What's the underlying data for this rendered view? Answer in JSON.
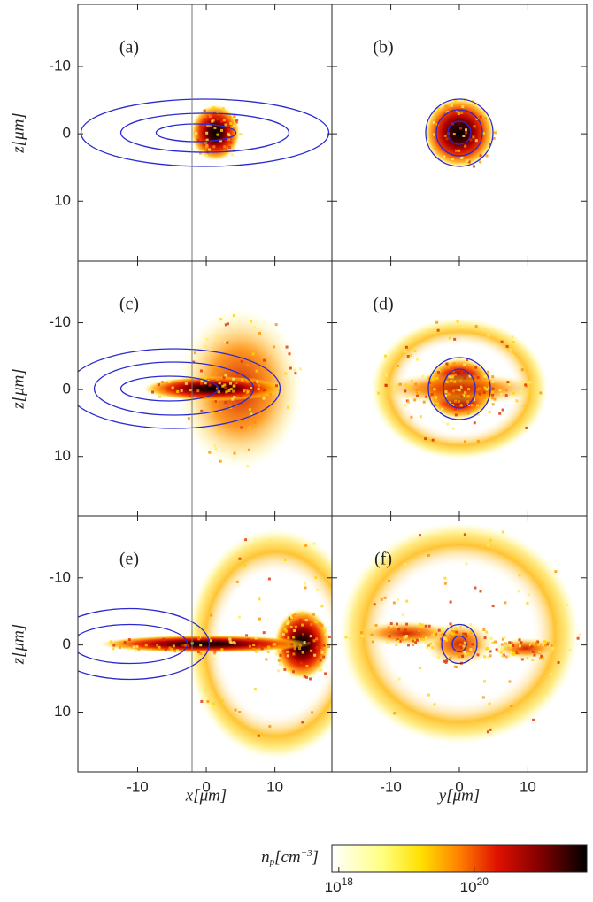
{
  "chart_data": [
    {
      "type": "heatmap",
      "panel_label": "(a)",
      "xlim": [
        -18.7,
        18.3
      ],
      "ylim": [
        18.9,
        -19.2
      ],
      "xticks": [
        -10,
        0,
        10
      ],
      "yticks": [
        -10,
        0,
        10
      ],
      "show_xticklabels": false,
      "show_yticklabels": true,
      "ylabel": "z[μm]"
    },
    {
      "type": "heatmap",
      "panel_label": "(b)",
      "xlim": [
        -18.6,
        18.6
      ],
      "ylim": [
        18.9,
        -19.2
      ],
      "xticks": [
        -10,
        0,
        10
      ],
      "yticks": [
        -10,
        0,
        10
      ],
      "show_xticklabels": false,
      "show_yticklabels": false
    },
    {
      "type": "heatmap",
      "panel_label": "(c)",
      "xlim": [
        -18.7,
        18.3
      ],
      "ylim": [
        18.9,
        -19.2
      ],
      "xticks": [
        -10,
        0,
        10
      ],
      "yticks": [
        -10,
        0,
        10
      ],
      "show_xticklabels": false,
      "show_yticklabels": true,
      "ylabel": "z[μm]"
    },
    {
      "type": "heatmap",
      "panel_label": "(d)",
      "xlim": [
        -18.6,
        18.6
      ],
      "ylim": [
        18.9,
        -19.2
      ],
      "xticks": [
        -10,
        0,
        10
      ],
      "yticks": [
        -10,
        0,
        10
      ],
      "show_xticklabels": false,
      "show_yticklabels": false
    },
    {
      "type": "heatmap",
      "panel_label": "(e)",
      "xlim": [
        -18.7,
        18.3
      ],
      "ylim": [
        18.9,
        -19.2
      ],
      "xticks": [
        -10,
        0,
        10
      ],
      "yticks": [
        -10,
        0,
        10
      ],
      "show_xticklabels": true,
      "show_yticklabels": true,
      "ylabel": "z[μm]",
      "xlabel": "x[μm]"
    },
    {
      "type": "heatmap",
      "panel_label": "(f)",
      "xlim": [
        -18.6,
        18.6
      ],
      "ylim": [
        18.9,
        -19.2
      ],
      "xticks": [
        -10,
        0,
        10
      ],
      "yticks": [
        -10,
        0,
        10
      ],
      "show_xticklabels": true,
      "show_yticklabels": false,
      "xlabel": "y[μm]"
    },
    {
      "type": "colorbar",
      "scale": "log",
      "clim": [
        7.9e+17,
        4.6e+21
      ],
      "ticks": [
        {
          "value": 1e+18,
          "label": "10",
          "sup": "18"
        },
        {
          "value": 1e+20,
          "label": "10",
          "sup": "20"
        }
      ],
      "label": {
        "base": "n",
        "sub": "p",
        "unit": "[cm",
        "sup": "−3",
        "end": "]"
      }
    }
  ]
}
